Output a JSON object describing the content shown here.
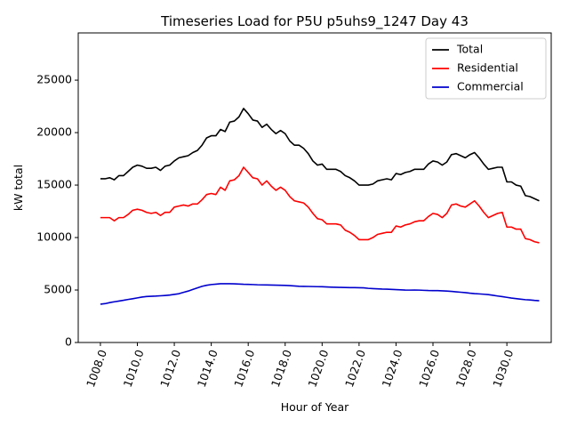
{
  "chart_data": {
    "type": "line",
    "title": "Timeseries Load for P5U p5uhs9_1247  Day 43",
    "xlabel": "Hour of Year",
    "ylabel": "kW total",
    "xlim": [
      1006.8,
      1032.4
    ],
    "ylim": [
      0,
      29500
    ],
    "x_ticks": [
      1008,
      1010,
      1012,
      1014,
      1016,
      1018,
      1020,
      1022,
      1024,
      1026,
      1028,
      1030
    ],
    "x_tick_labels": [
      "1008.0",
      "1010.0",
      "1012.0",
      "1014.0",
      "1016.0",
      "1018.0",
      "1020.0",
      "1022.0",
      "1024.0",
      "1026.0",
      "1028.0",
      "1030.0"
    ],
    "y_ticks": [
      0,
      5000,
      10000,
      15000,
      20000,
      25000
    ],
    "y_tick_labels": [
      "0",
      "5000",
      "10000",
      "15000",
      "20000",
      "25000"
    ],
    "grid": false,
    "legend_position": "top-right",
    "x": [
      1008.0,
      1008.25,
      1008.5,
      1008.75,
      1009.0,
      1009.25,
      1009.5,
      1009.75,
      1010.0,
      1010.25,
      1010.5,
      1010.75,
      1011.0,
      1011.25,
      1011.5,
      1011.75,
      1012.0,
      1012.25,
      1012.5,
      1012.75,
      1013.0,
      1013.25,
      1013.5,
      1013.75,
      1014.0,
      1014.25,
      1014.5,
      1014.75,
      1015.0,
      1015.25,
      1015.5,
      1015.75,
      1016.0,
      1016.25,
      1016.5,
      1016.75,
      1017.0,
      1017.25,
      1017.5,
      1017.75,
      1018.0,
      1018.25,
      1018.5,
      1018.75,
      1019.0,
      1019.25,
      1019.5,
      1019.75,
      1020.0,
      1020.25,
      1020.5,
      1020.75,
      1021.0,
      1021.25,
      1021.5,
      1021.75,
      1022.0,
      1022.25,
      1022.5,
      1022.75,
      1023.0,
      1023.25,
      1023.5,
      1023.75,
      1024.0,
      1024.25,
      1024.5,
      1024.75,
      1025.0,
      1025.25,
      1025.5,
      1025.75,
      1026.0,
      1026.25,
      1026.5,
      1026.75,
      1027.0,
      1027.25,
      1027.5,
      1027.75,
      1028.0,
      1028.25,
      1028.5,
      1028.75,
      1029.0,
      1029.25,
      1029.5,
      1029.75,
      1030.0,
      1030.25,
      1030.5,
      1030.75,
      1031.0,
      1031.25,
      1031.5,
      1031.75
    ],
    "series": [
      {
        "name": "Total",
        "color": "#000000",
        "values": [
          15600,
          15600,
          15700,
          15500,
          15900,
          15900,
          16300,
          16700,
          16900,
          16800,
          16600,
          16600,
          16700,
          16400,
          16800,
          16900,
          17300,
          17600,
          17700,
          17800,
          18100,
          18300,
          18800,
          19500,
          19700,
          19700,
          20300,
          20100,
          21000,
          21100,
          21500,
          22300,
          21800,
          21200,
          21100,
          20500,
          20800,
          20300,
          19900,
          20200,
          19900,
          19200,
          18800,
          18800,
          18500,
          18000,
          17300,
          16900,
          17000,
          16500,
          16500,
          16500,
          16300,
          15900,
          15700,
          15400,
          15000,
          15000,
          15000,
          15100,
          15400,
          15500,
          15600,
          15500,
          16100,
          16000,
          16200,
          16300,
          16500,
          16500,
          16500,
          17000,
          17300,
          17200,
          16900,
          17200,
          17900,
          18000,
          17800,
          17600,
          17900,
          18100,
          17600,
          17000,
          16500,
          16600,
          16700,
          16700,
          15300,
          15300,
          15000,
          14900,
          14000,
          13900,
          13700,
          13500
        ]
      },
      {
        "name": "Residential",
        "color": "#ff0000",
        "values": [
          11900,
          11900,
          11900,
          11600,
          11900,
          11900,
          12200,
          12600,
          12700,
          12600,
          12400,
          12300,
          12400,
          12100,
          12400,
          12400,
          12900,
          13000,
          13100,
          13000,
          13200,
          13200,
          13600,
          14100,
          14200,
          14100,
          14800,
          14500,
          15400,
          15500,
          15900,
          16700,
          16200,
          15700,
          15600,
          15000,
          15400,
          14900,
          14500,
          14800,
          14500,
          13900,
          13500,
          13400,
          13300,
          12900,
          12300,
          11800,
          11700,
          11300,
          11300,
          11300,
          11200,
          10700,
          10500,
          10200,
          9800,
          9800,
          9800,
          10000,
          10300,
          10400,
          10500,
          10500,
          11100,
          11000,
          11200,
          11300,
          11500,
          11600,
          11600,
          12000,
          12300,
          12200,
          11900,
          12300,
          13100,
          13200,
          13000,
          12900,
          13200,
          13500,
          13000,
          12400,
          11900,
          12100,
          12300,
          12400,
          11000,
          11000,
          10800,
          10800,
          9900,
          9800,
          9600,
          9500
        ]
      },
      {
        "name": "Commercial",
        "color": "#0000cd",
        "values": [
          3650,
          3700,
          3800,
          3880,
          3950,
          4020,
          4100,
          4170,
          4250,
          4330,
          4380,
          4400,
          4420,
          4450,
          4480,
          4520,
          4580,
          4650,
          4780,
          4900,
          5050,
          5200,
          5350,
          5450,
          5520,
          5560,
          5600,
          5600,
          5600,
          5590,
          5570,
          5550,
          5540,
          5520,
          5500,
          5490,
          5480,
          5470,
          5460,
          5450,
          5440,
          5420,
          5390,
          5360,
          5350,
          5340,
          5330,
          5320,
          5310,
          5290,
          5270,
          5260,
          5250,
          5240,
          5230,
          5230,
          5220,
          5210,
          5160,
          5130,
          5110,
          5090,
          5080,
          5060,
          5040,
          5020,
          5000,
          4990,
          5000,
          4990,
          4970,
          4950,
          4940,
          4940,
          4920,
          4900,
          4870,
          4830,
          4790,
          4750,
          4700,
          4660,
          4630,
          4600,
          4560,
          4500,
          4430,
          4370,
          4300,
          4230,
          4180,
          4130,
          4080,
          4050,
          4010,
          3980
        ]
      }
    ]
  }
}
